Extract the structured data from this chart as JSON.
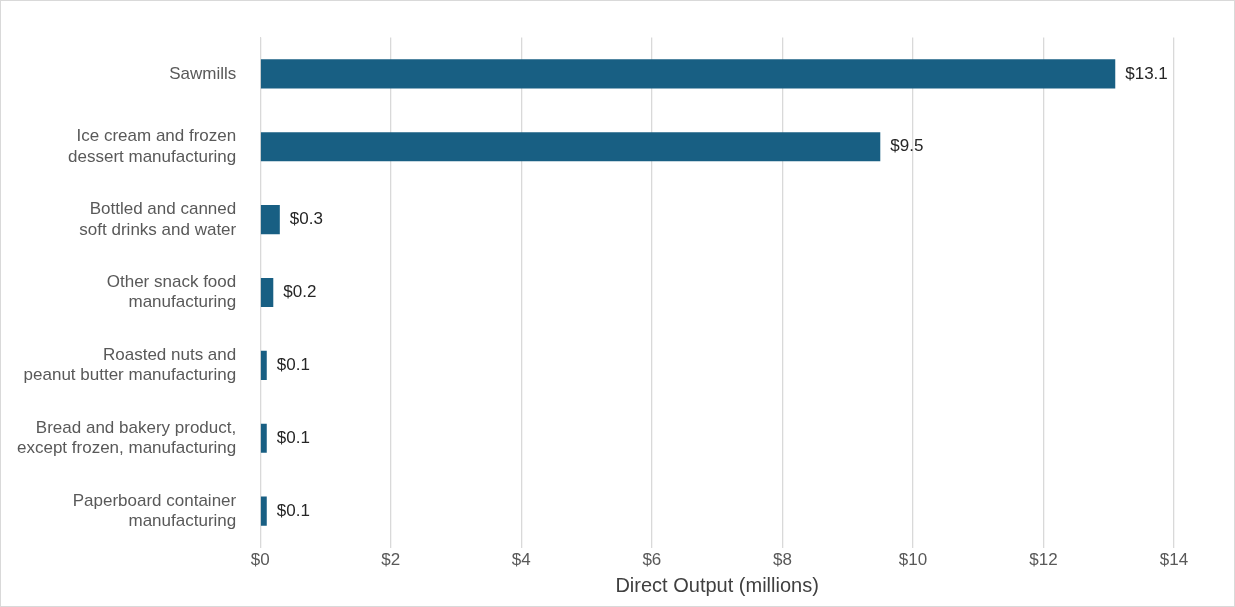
{
  "chart_data": {
    "type": "bar",
    "orientation": "horizontal",
    "xlabel": "Direct Output (millions)",
    "categories": [
      "Sawmills",
      "Ice cream and frozen\ndessert manufacturing",
      "Bottled and canned\nsoft drinks and water",
      "Other snack food\nmanufacturing",
      "Roasted nuts and\npeanut butter manufacturing",
      "Bread and bakery product,\nexcept frozen, manufacturing",
      "Paperboard container\nmanufacturing"
    ],
    "values": [
      13.1,
      9.5,
      0.3,
      0.2,
      0.1,
      0.1,
      0.1
    ],
    "value_labels": [
      "$13.1",
      "$9.5",
      "$0.3",
      "$0.2",
      "$0.1",
      "$0.1",
      "$0.1"
    ],
    "color": "#185f83",
    "xlim": [
      0,
      14
    ],
    "xticks": [
      {
        "value": 0,
        "label": "$0"
      },
      {
        "value": 2,
        "label": "$2"
      },
      {
        "value": 4,
        "label": "$4"
      },
      {
        "value": 6,
        "label": "$6"
      },
      {
        "value": 8,
        "label": "$8"
      },
      {
        "value": 10,
        "label": "$10"
      },
      {
        "value": 12,
        "label": "$12"
      },
      {
        "value": 14,
        "label": "$14"
      }
    ],
    "grid": "x",
    "legend": false
  }
}
